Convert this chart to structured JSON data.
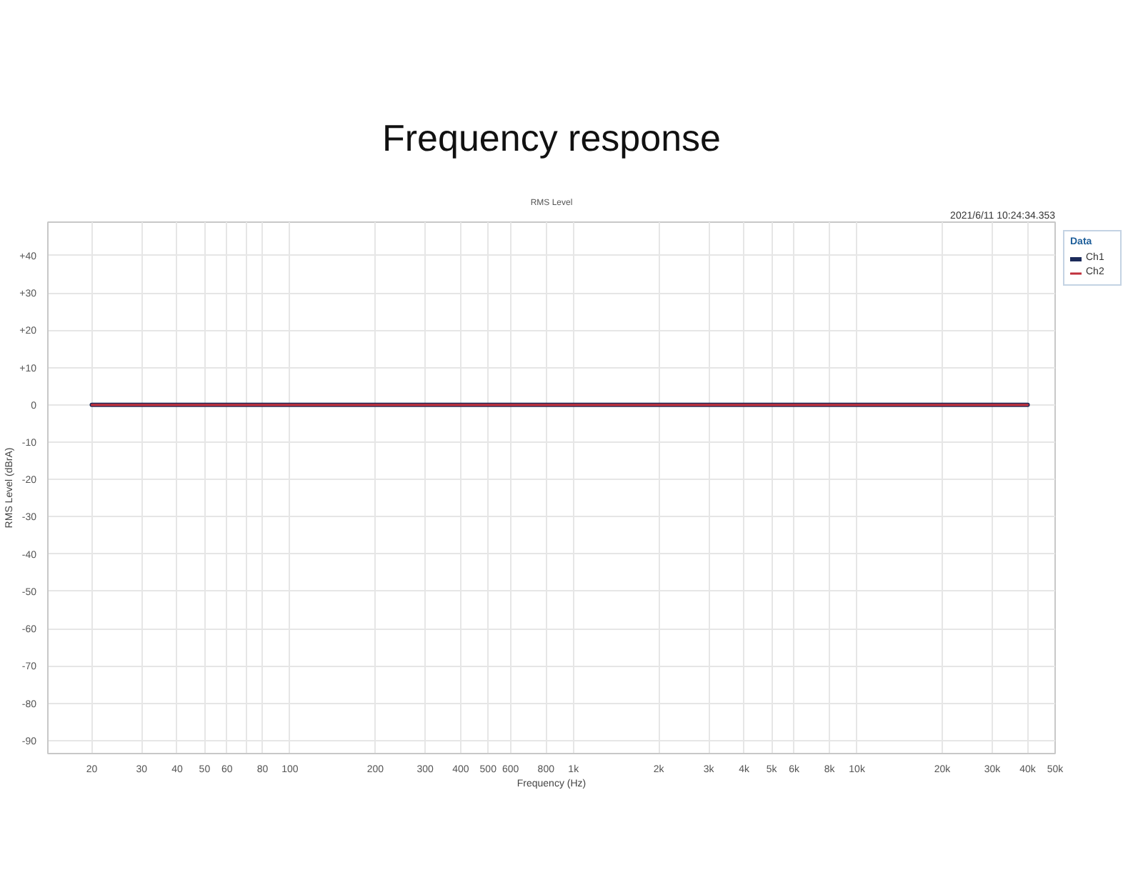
{
  "chart_data": {
    "type": "line",
    "title": "Frequency response",
    "subtitle": "RMS Level",
    "xlabel": "Frequency (Hz)",
    "ylabel": "RMS Level (dBrA)",
    "legend_title": "Data",
    "annotations": [
      "2021/6/11 10:24:34.353"
    ],
    "x": [
      20,
      40000
    ],
    "series": [
      {
        "name": "Ch1",
        "color": "#1c2b5a",
        "values": [
          0,
          0
        ]
      },
      {
        "name": "Ch2",
        "color": "#c0303c",
        "values": [
          0,
          0
        ]
      }
    ],
    "log": "x",
    "xlim": [
      14,
      50000
    ],
    "ylim": [
      -93.5,
      49
    ],
    "xticks": [
      20,
      30,
      40,
      50,
      60,
      {
        "value": 70,
        "label": null
      },
      80,
      100,
      200,
      300,
      400,
      500,
      600,
      800,
      {
        "value": 1000,
        "label": "1k"
      },
      {
        "value": 2000,
        "label": "2k"
      },
      {
        "value": 3000,
        "label": "3k"
      },
      {
        "value": 4000,
        "label": "4k"
      },
      {
        "value": 5000,
        "label": "5k"
      },
      {
        "value": 6000,
        "label": "6k"
      },
      {
        "value": 8000,
        "label": "8k"
      },
      {
        "value": 10000,
        "label": "10k"
      },
      {
        "value": 20000,
        "label": "20k"
      },
      {
        "value": 30000,
        "label": "30k"
      },
      {
        "value": 40000,
        "label": "40k"
      },
      {
        "value": 50000,
        "label": "50k"
      }
    ],
    "yticks": [
      {
        "value": 40,
        "label": "+40"
      },
      {
        "value": 30,
        "label": "+30"
      },
      {
        "value": 20,
        "label": "+20"
      },
      {
        "value": 10,
        "label": "+10"
      },
      0,
      -10,
      -20,
      -30,
      -40,
      -50,
      -60,
      -70,
      -80,
      -90
    ],
    "grid": true,
    "legend": "top right"
  }
}
